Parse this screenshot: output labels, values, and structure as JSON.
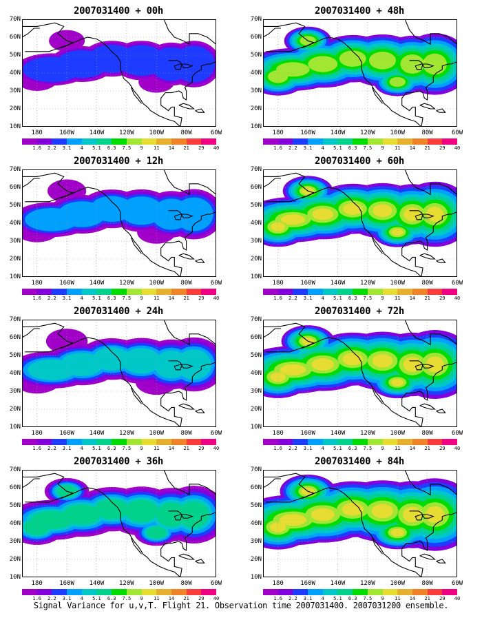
{
  "panels": [
    {
      "title": "2007031400 + 00h",
      "intensity": 0
    },
    {
      "title": "2007031400 + 48h",
      "intensity": 4
    },
    {
      "title": "2007031400 + 12h",
      "intensity": 1
    },
    {
      "title": "2007031400 + 60h",
      "intensity": 5
    },
    {
      "title": "2007031400 + 24h",
      "intensity": 2
    },
    {
      "title": "2007031400 + 72h",
      "intensity": 6
    },
    {
      "title": "2007031400 + 36h",
      "intensity": 3
    },
    {
      "title": "2007031400 + 84h",
      "intensity": 7
    }
  ],
  "lat_labels": [
    "70N",
    "60N",
    "50N",
    "40N",
    "30N",
    "20N",
    "10N"
  ],
  "lon_labels": [
    "180",
    "160W",
    "140W",
    "120W",
    "100W",
    "80W",
    "60W"
  ],
  "colorbar": {
    "labels": [
      "1.6",
      "2.2",
      "3.1",
      "4",
      "5.1",
      "6.3",
      "7.5",
      "9",
      "11",
      "14",
      "21",
      "29",
      "40"
    ],
    "colors": [
      "#a000c8",
      "#8200dc",
      "#1e3cff",
      "#00a0ff",
      "#00c8c8",
      "#00d28c",
      "#00dc00",
      "#a0e632",
      "#e6dc32",
      "#e6af2d",
      "#f08228",
      "#fa3c3c",
      "#f00082"
    ]
  },
  "caption": "Signal Variance for u,v,T. Flight 21. Observation time 2007031400. 2007031200 ensemble."
}
